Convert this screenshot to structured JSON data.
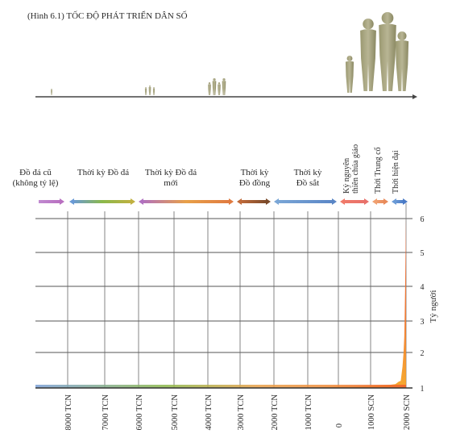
{
  "chart_data": {
    "type": "area",
    "title": "(Hình 6.1) TỐC ĐỘ PHÁT TRIỂN DÂN SỐ",
    "ylabel": "Tỷ người",
    "ylim": [
      0,
      6
    ],
    "y_ticks": [
      "1",
      "2",
      "3",
      "4",
      "5",
      "6"
    ],
    "x_ticks": [
      "8000 TCN",
      "7000 TCN",
      "6000 TCN",
      "5000 TCN",
      "4000 TCN",
      "3000 TCN",
      "2000 TCN",
      "1000 TCN",
      "0",
      "1000 SCN",
      "2000 SCN"
    ],
    "x_tick_years": [
      -8000,
      -7000,
      -6000,
      -5000,
      -4000,
      -3000,
      -2000,
      -1000,
      0,
      1000,
      2000
    ],
    "grid": true,
    "series": [
      {
        "x": [
          -8000,
          -6000,
          -4000,
          -3000,
          -2000,
          -1000,
          0,
          500,
          1000,
          1300,
          1500,
          1700,
          1800,
          1850,
          1900,
          1930,
          1950,
          1960,
          1975,
          1990,
          2000
        ],
        "values": [
          0.005,
          0.01,
          0.02,
          0.03,
          0.05,
          0.07,
          0.2,
          0.21,
          0.3,
          0.4,
          0.45,
          0.6,
          1.0,
          1.2,
          1.6,
          2.0,
          2.5,
          3.0,
          4.0,
          5.3,
          6.0
        ]
      }
    ],
    "periods": [
      {
        "label": [
          "Đồ đá cũ",
          "(không tỷ lệ)"
        ],
        "color": "#b86fc0"
      },
      {
        "label": [
          "Thời kỳ Đồ đá"
        ],
        "color": "#8bb84a"
      },
      {
        "label": [
          "Thời  kỳ  Đồ  đá",
          "mới"
        ],
        "color": "#e8a048"
      },
      {
        "label": [
          "Thời kỳ",
          "Đồ đồng"
        ],
        "color": "#9a5a3a"
      },
      {
        "label": [
          "Thời kỳ",
          "Đồ sắt"
        ],
        "color": "#7aa6d6"
      },
      {
        "label": [
          "Kỷ nguyên",
          "thiên chúa giáo"
        ],
        "color": "#e8706a"
      },
      {
        "label": [
          "Thời Trung cổ"
        ],
        "color": "#f0a070"
      },
      {
        "label": [
          "Thời hiện đại"
        ],
        "color": "#6a9ad6"
      }
    ],
    "people_groups": [
      "person-icon",
      "group-icon",
      "group-icon",
      "family-icon"
    ]
  }
}
